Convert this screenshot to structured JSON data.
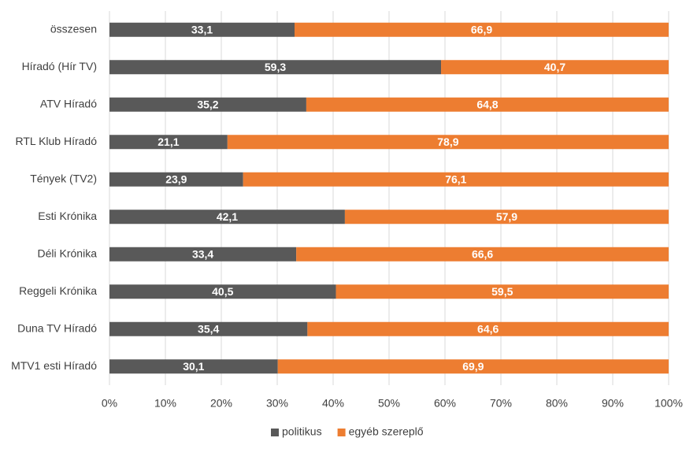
{
  "chart_data": {
    "type": "stacked-barh",
    "categories": [
      "összesen",
      "Híradó (Hír TV)",
      "ATV Híradó",
      "RTL Klub Híradó",
      "Tények (TV2)",
      "Esti Krónika",
      "Déli Krónika",
      "Reggeli Krónika",
      "Duna TV Híradó",
      "MTV1 esti Híradó"
    ],
    "series": [
      {
        "name": "politikus",
        "color": "#595959",
        "values": [
          33.1,
          59.3,
          35.2,
          21.1,
          23.9,
          42.1,
          33.4,
          40.5,
          35.4,
          30.1
        ],
        "value_labels": [
          "33,1",
          "59,3",
          "35,2",
          "21,1",
          "23,9",
          "42,1",
          "33,4",
          "40,5",
          "35,4",
          "30,1"
        ]
      },
      {
        "name": "egyéb szereplő",
        "color": "#ed7d31",
        "values": [
          66.9,
          40.7,
          64.8,
          78.9,
          76.1,
          57.9,
          66.6,
          59.5,
          64.6,
          69.9
        ],
        "value_labels": [
          "66,9",
          "40,7",
          "64,8",
          "78,9",
          "76,1",
          "57,9",
          "66,6",
          "59,5",
          "64,6",
          "69,9"
        ]
      }
    ],
    "xlim": [
      0,
      100
    ],
    "xticks": [
      {
        "value": 0,
        "label": "0%"
      },
      {
        "value": 10,
        "label": "10%"
      },
      {
        "value": 20,
        "label": "20%"
      },
      {
        "value": 30,
        "label": "30%"
      },
      {
        "value": 40,
        "label": "40%"
      },
      {
        "value": 50,
        "label": "50%"
      },
      {
        "value": 60,
        "label": "60%"
      },
      {
        "value": 70,
        "label": "70%"
      },
      {
        "value": 80,
        "label": "80%"
      },
      {
        "value": 90,
        "label": "90%"
      },
      {
        "value": 100,
        "label": "100%"
      }
    ],
    "grid": true,
    "legend": "bottom"
  }
}
